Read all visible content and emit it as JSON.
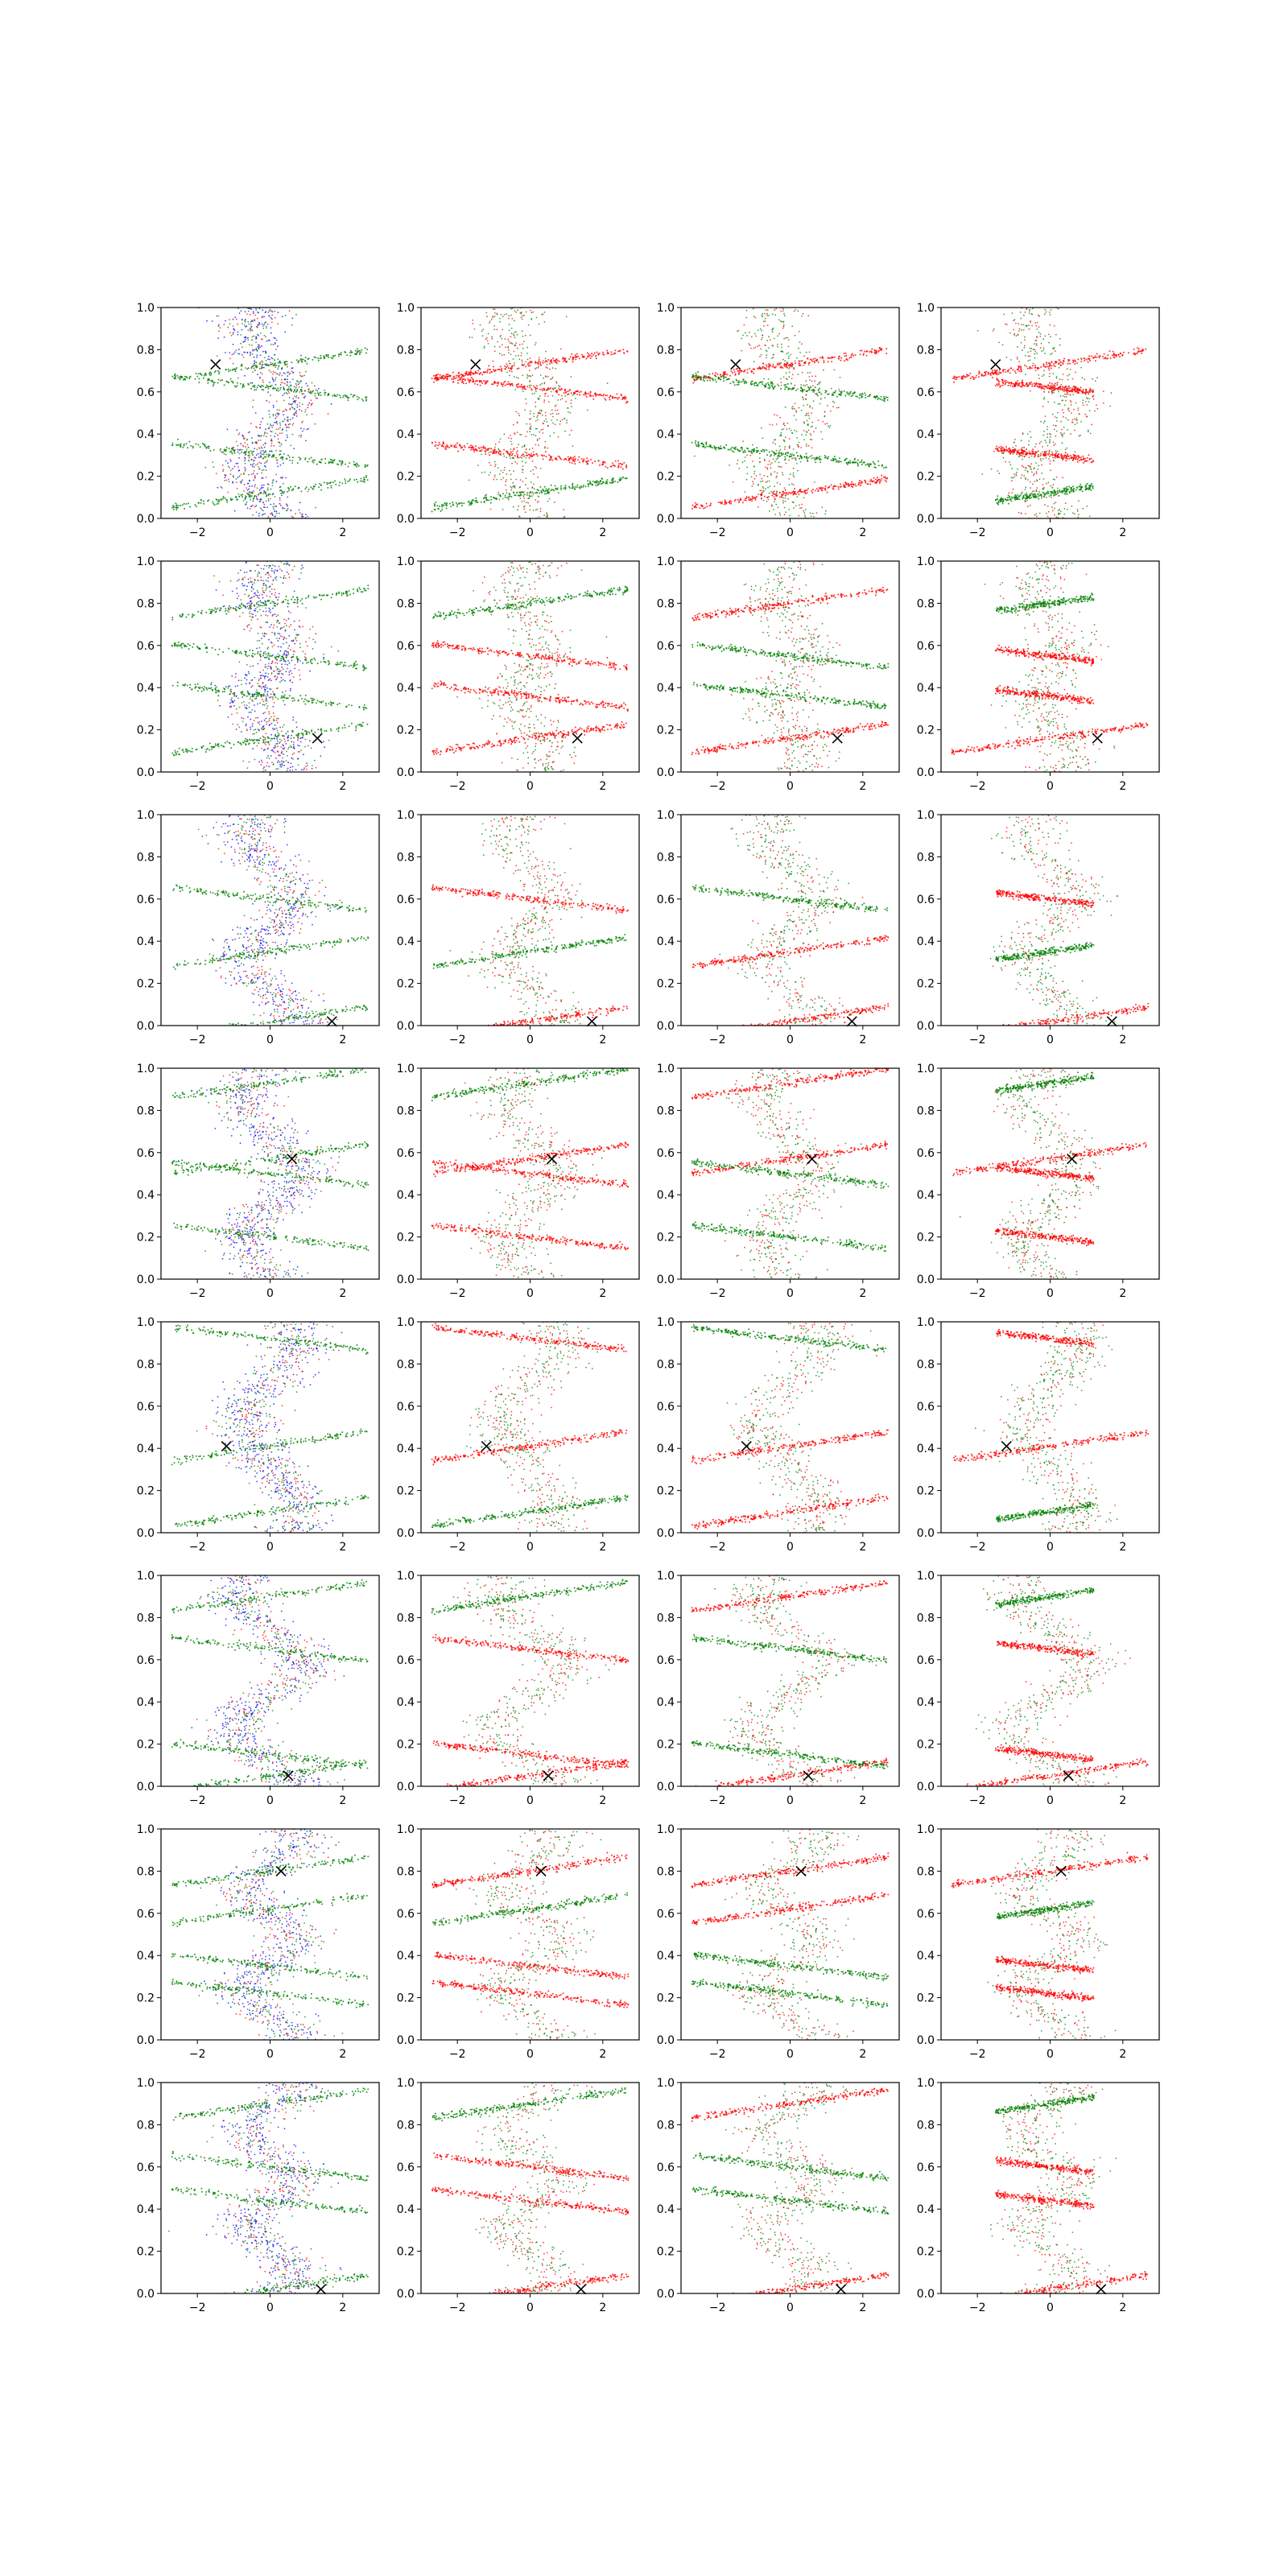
{
  "figure": {
    "rows": 8,
    "cols": 4,
    "background": "#ffffff",
    "colors": {
      "red": "#ff0000",
      "green": "#008000",
      "blue": "#0000ff",
      "marker": "#000000"
    }
  },
  "chart_data": {
    "type": "scatter",
    "xlim": [
      -3,
      3
    ],
    "ylim": [
      0,
      1
    ],
    "xticks": [
      -2,
      0,
      2
    ],
    "xtick_labels": [
      "−2",
      "0",
      "2"
    ],
    "yticks": [
      0,
      0.2,
      0.4,
      0.6,
      0.8,
      1.0
    ],
    "ytick_labels": [
      "0.0",
      "0.2",
      "0.4",
      "0.6",
      "0.8",
      "1.0"
    ],
    "grid": false,
    "legend": "none",
    "x_marker_icon": "x-marker-icon",
    "markers": [
      {
        "row": 1,
        "x": -1.5,
        "y": 0.73
      },
      {
        "row": 2,
        "x": 1.3,
        "y": 0.16
      },
      {
        "row": 3,
        "x": 1.7,
        "y": 0.02
      },
      {
        "row": 4,
        "x": 0.6,
        "y": 0.57
      },
      {
        "row": 5,
        "x": -1.2,
        "y": 0.41
      },
      {
        "row": 6,
        "x": 0.5,
        "y": 0.05
      },
      {
        "row": 7,
        "x": 0.3,
        "y": 0.8
      },
      {
        "row": 8,
        "x": 1.4,
        "y": 0.02
      }
    ],
    "series_note_colors": [
      "red",
      "green",
      "blue"
    ]
  }
}
